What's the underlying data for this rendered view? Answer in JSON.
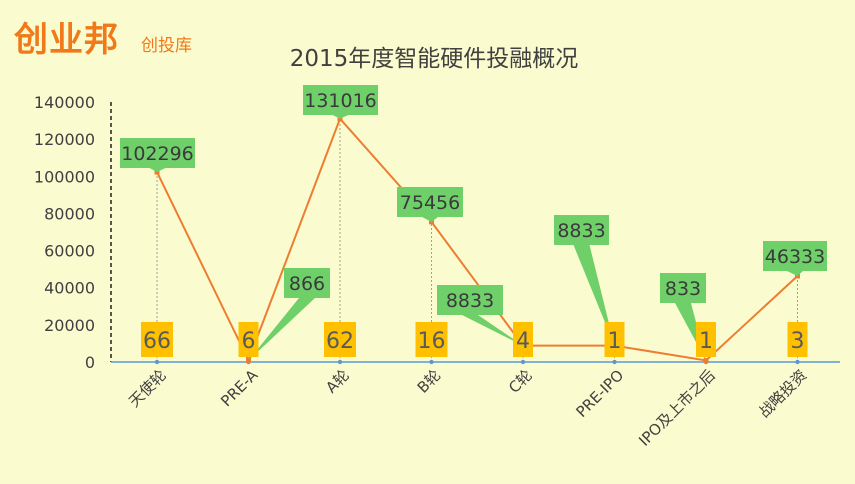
{
  "brand": {
    "logo_text": "创业邦",
    "sub_text": "创投库"
  },
  "colors": {
    "background": "#fbfbd0",
    "line_amount": "#ed7d31",
    "baseline": "#5b9bd5",
    "callout_green": "#6fd06a",
    "label_gold": "#ffc000",
    "brand_orange": "#f07a1a"
  },
  "chart_data": {
    "type": "line",
    "title": "2015年度智能硬件投融概况",
    "xlabel": "",
    "ylabel": "",
    "ylim": [
      0,
      140000
    ],
    "yticks": [
      0,
      20000,
      40000,
      60000,
      80000,
      100000,
      120000,
      140000
    ],
    "categories": [
      "天使轮",
      "PRE-A",
      "A轮",
      "B轮",
      "C轮",
      "PRE-IPO",
      "IPO及上市之后",
      "战略投资"
    ],
    "series": [
      {
        "values": [
          102296,
          866,
          131016,
          75456,
          8833,
          8833,
          833,
          46333
        ],
        "data_labels": [
          "102296",
          "866",
          "131016",
          "75456",
          "8833",
          "8833",
          "833",
          "46333"
        ]
      },
      {
        "values": [
          66,
          6,
          62,
          16,
          4,
          1,
          1,
          3
        ],
        "data_labels": [
          "66",
          "6",
          "62",
          "16",
          "4",
          "1",
          "1",
          "3"
        ]
      }
    ],
    "grid": false,
    "legend": "none"
  }
}
